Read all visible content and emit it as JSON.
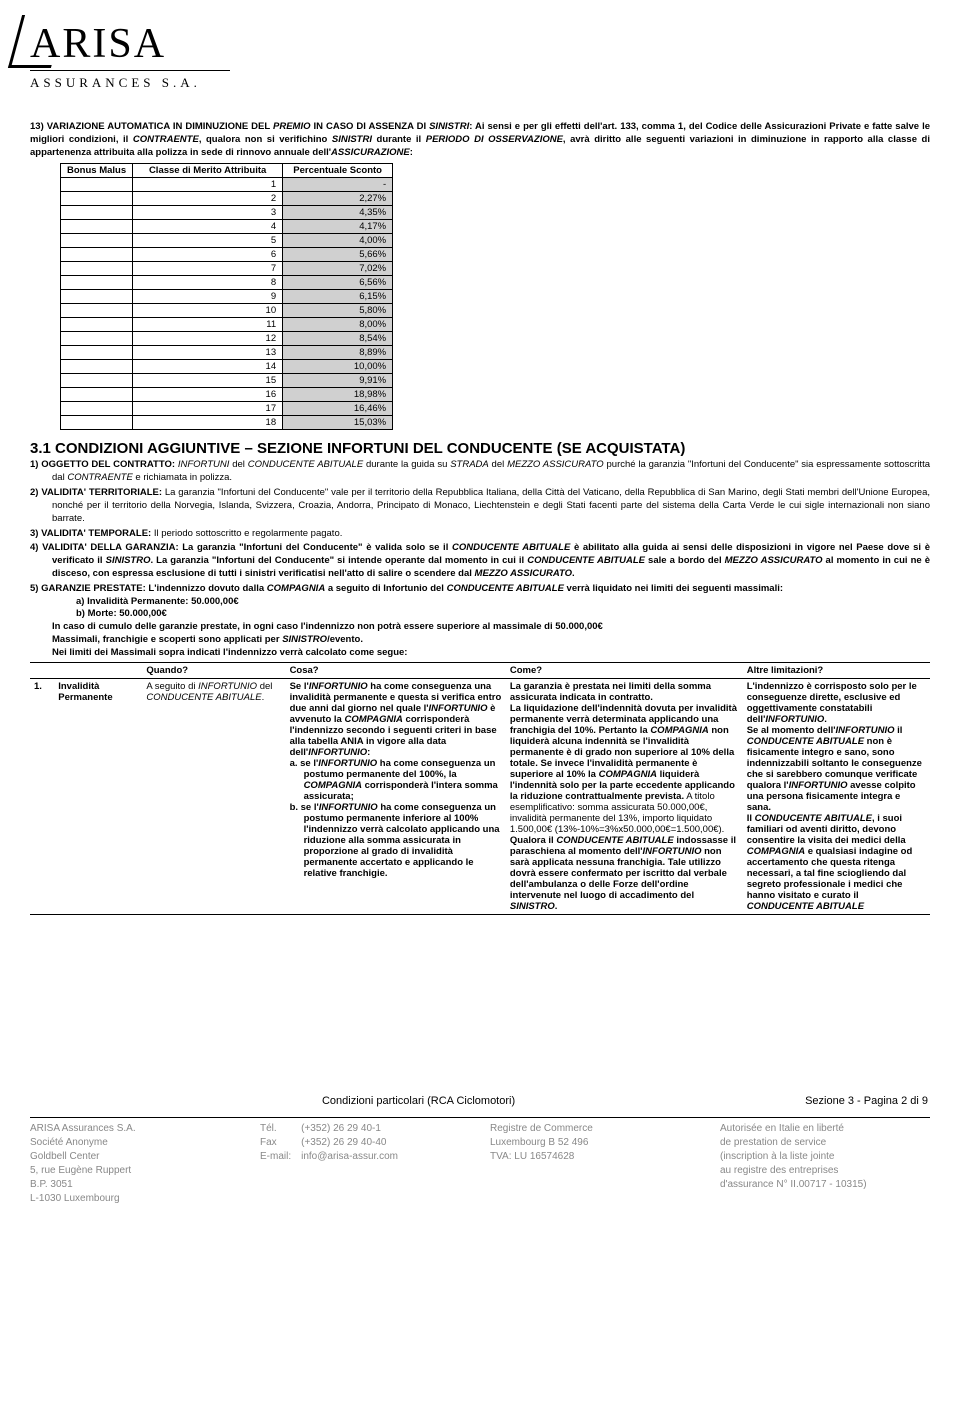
{
  "logo": {
    "main": "ARISA",
    "sub": "ASSURANCES S.A."
  },
  "clause13": {
    "lead_num": "13)",
    "lead_title_a": "VARIAZIONE AUTOMATICA IN DIMINUZIONE DEL ",
    "lead_premio": "PREMIO",
    "lead_title_b": " IN CASO DI ASSENZA DI ",
    "lead_sinistri": "SINISTRI",
    "lead_title_c": ": Ai sensi e per gli effetti dell'art. 133, comma 1, del Codice delle Assicurazioni Private e fatte salve le migliori condizioni, il ",
    "lead_contraente": "CONTRAENTE",
    "lead_title_d": ", qualora non si verifichino ",
    "lead_sinistri2": "SINISTRI",
    "lead_title_e": " durante il ",
    "lead_periodo": "PERIODO DI OSSERVAZIONE",
    "lead_title_f": ", avrà diritto alle seguenti variazioni in diminuzione in rapporto alla classe di appartenenza attribuita alla polizza in sede di rinnovo annuale dell'",
    "lead_assic": "ASSICURAZIONE",
    "lead_colon": ":"
  },
  "bonus_table": {
    "h1": "Bonus Malus",
    "h2": "Classe di Merito Attribuita",
    "h3": "Percentuale Sconto",
    "rows": [
      {
        "c": "1",
        "p": "-"
      },
      {
        "c": "2",
        "p": "2,27%"
      },
      {
        "c": "3",
        "p": "4,35%"
      },
      {
        "c": "4",
        "p": "4,17%"
      },
      {
        "c": "5",
        "p": "4,00%"
      },
      {
        "c": "6",
        "p": "5,66%"
      },
      {
        "c": "7",
        "p": "7,02%"
      },
      {
        "c": "8",
        "p": "6,56%"
      },
      {
        "c": "9",
        "p": "6,15%"
      },
      {
        "c": "10",
        "p": "5,80%"
      },
      {
        "c": "11",
        "p": "8,00%"
      },
      {
        "c": "12",
        "p": "8,54%"
      },
      {
        "c": "13",
        "p": "8,89%"
      },
      {
        "c": "14",
        "p": "10,00%"
      },
      {
        "c": "15",
        "p": "9,91%"
      },
      {
        "c": "16",
        "p": "18,98%"
      },
      {
        "c": "17",
        "p": "16,46%"
      },
      {
        "c": "18",
        "p": "15,03%"
      }
    ]
  },
  "section31": {
    "title": "3.1 CONDIZIONI AGGIUNTIVE – SEZIONE INFORTUNI DEL CONDUCENTE (SE ACQUISTATA)"
  },
  "items": {
    "i1_num": "1)",
    "i1_a": "OGGETTO DEL CONTRATTO:",
    "i1_b": " INFORTUNI",
    "i1_c": " del ",
    "i1_d": "CONDUCENTE ABITUALE",
    "i1_e": " durante la guida su ",
    "i1_f": "STRADA",
    "i1_g": " del ",
    "i1_h": "MEZZO ASSICURATO",
    "i1_i": " purché la garanzia \"Infortuni del Conducente\" sia espressamente sottoscritta dal ",
    "i1_j": "CONTRAENTE",
    "i1_k": " e richiamata in polizza.",
    "i2_num": "2)",
    "i2_a": "VALIDITA' TERRITORIALE:",
    "i2_b": " La garanzia \"Infortuni del Conducente\"  vale per il territorio della Repubblica Italiana, della Città del Vaticano, della Repubblica di San Marino, degli Stati membri dell'Unione Europea, nonché per il territorio della Norvegia, Islanda, Svizzera, Croazia, Andorra, Principato di Monaco, Liechtenstein e degli Stati facenti parte del sistema della Carta Verde le cui sigle internazionali non siano barrate.",
    "i3_num": "3)",
    "i3_a": "VALIDITA' TEMPORALE:",
    "i3_b": " Il periodo sottoscritto e regolarmente pagato.",
    "i4_num": "4)",
    "i4_a": "VALIDITA' DELLA GARANZIA: La garanzia \"Infortuni del Conducente\" è valida solo se il ",
    "i4_b": "CONDUCENTE ABITUALE",
    "i4_c": " è abilitato alla guida ai sensi delle disposizioni in vigore nel Paese dove si è verificato il ",
    "i4_d": "SINISTRO",
    "i4_e": ". La garanzia \"Infortuni del Conducente\" si intende operante dal momento in cui il ",
    "i4_f": "CONDUCENTE ABITUALE",
    "i4_g": " sale a bordo del ",
    "i4_h": "MEZZO ASSICURATO",
    "i4_i": " al momento in cui ne è disceso, con espressa esclusione di tutti i sinistri verificatisi nell'atto di salire o scendere dal ",
    "i4_j": "MEZZO ASSICURATO",
    "i4_k": ".",
    "i5_num": "5)",
    "i5_a": "GARANZIE PRESTATE: L'indennizzo dovuto dalla ",
    "i5_b": "COMPAGNIA",
    "i5_c": " a seguito di Infortunio del ",
    "i5_d": "CONDUCENTE ABITUALE",
    "i5_e": " verrà liquidato nei limiti dei seguenti massimali:",
    "i5_line_a": "a) Invalidità Permanente: 50.000,00€",
    "i5_line_b": "b) Morte: 50.000,00€",
    "i5_f": "In caso di cumulo delle garanzie prestate, in ogni caso l'indennizzo non potrà essere superiore al massimale di 50.000,00€",
    "i5_g": "Massimali, franchigie e scoperti sono applicati per ",
    "i5_h": "SINISTRO",
    "i5_i": "/evento.",
    "i5_j": "Nei limiti dei Massimali sopra indicati l'indennizzo verrà calcolato come segue:"
  },
  "cov_table": {
    "h_quando": "Quando?",
    "h_cosa": "Cosa?",
    "h_come": "Come?",
    "h_altre": "Altre limitazioni?",
    "r1_num": "1.",
    "r1_name": "Invalidità Permanente",
    "r1_quando_a": "A seguito di ",
    "r1_quando_b": "INFORTUNIO",
    "r1_quando_c": " del ",
    "r1_quando_d": "CONDUCENTE ABITUALE",
    "r1_quando_e": "."
  },
  "footer": {
    "center": "Condizioni particolari (RCA Ciclomotori)",
    "right": "Sezione 3 - Pagina 2 di 9",
    "col1": {
      "l1": "ARISA Assurances S.A.",
      "l2": "Société Anonyme",
      "l3": "Goldbell Center",
      "l4": "5, rue Eugène Ruppert",
      "l5": "B.P. 3051",
      "l6": "L-1030 Luxembourg"
    },
    "col2": {
      "tel_l": "Tél.",
      "tel_v": "(+352) 26 29 40-1",
      "fax_l": "Fax",
      "fax_v": "(+352) 26 29 40-40",
      "email_l": "E-mail:",
      "email_v": "info@arisa-assur.com"
    },
    "col3": {
      "l1": "Registre de Commerce",
      "l2": "Luxembourg B 52 496",
      "l3": "TVA: LU 16574628"
    },
    "col4": {
      "l1": "Autorisée en Italie en liberté",
      "l2": "de prestation de service",
      "l3": "(inscription à la liste jointe",
      "l4": "au registre des entreprises",
      "l5": "d'assurance N° II.00717 - 10315)"
    }
  }
}
